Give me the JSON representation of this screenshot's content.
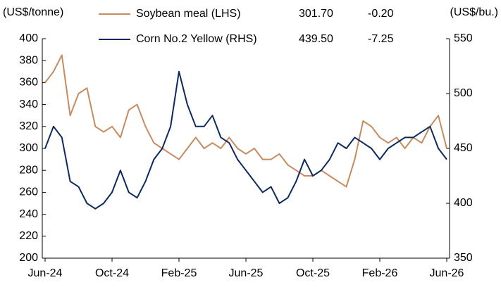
{
  "chart_data": {
    "type": "line",
    "ylabel": "(US$/tonne)",
    "y2label": "(US$/bu.)",
    "categories": [
      "Jun-24",
      null,
      null,
      null,
      null,
      null,
      null,
      null,
      "Oct-24",
      null,
      null,
      null,
      null,
      null,
      null,
      null,
      "Feb-25",
      null,
      null,
      null,
      null,
      null,
      null,
      null,
      "Jun-25",
      null,
      null,
      null,
      null,
      null,
      null,
      null,
      "Oct-25",
      null,
      null,
      null,
      null,
      null,
      null,
      null,
      "Feb-26",
      null,
      null,
      null,
      null,
      null,
      null,
      null,
      "Jun-26"
    ],
    "series": [
      {
        "name": "Soybean meal (LHS)",
        "color": "#c68b5f",
        "axis": "y",
        "last": "301.70",
        "change": "-0.20",
        "values": [
          360,
          370,
          385,
          330,
          350,
          355,
          320,
          315,
          320,
          310,
          335,
          340,
          320,
          305,
          300,
          295,
          290,
          300,
          310,
          300,
          305,
          300,
          310,
          300,
          295,
          300,
          290,
          290,
          295,
          285,
          280,
          275,
          275,
          280,
          275,
          270,
          265,
          290,
          325,
          320,
          310,
          305,
          310,
          300,
          310,
          305,
          320,
          330,
          300
        ]
      },
      {
        "name": "Corn No.2 Yellow (RHS)",
        "color": "#0d2a5e",
        "axis": "y2",
        "last": "439.50",
        "change": "-7.25",
        "values": [
          450,
          470,
          460,
          420,
          415,
          400,
          395,
          400,
          410,
          430,
          410,
          405,
          420,
          440,
          450,
          470,
          520,
          490,
          470,
          470,
          480,
          460,
          455,
          440,
          430,
          420,
          410,
          415,
          400,
          405,
          420,
          440,
          425,
          430,
          440,
          455,
          450,
          460,
          455,
          450,
          440,
          450,
          455,
          460,
          460,
          465,
          470,
          450,
          440
        ]
      }
    ],
    "ylim": [
      200,
      400
    ],
    "yticks": [
      200,
      220,
      240,
      260,
      280,
      300,
      320,
      340,
      360,
      380,
      400
    ],
    "y2lim": [
      350,
      550
    ],
    "y2ticks": [
      350,
      400,
      450,
      500,
      550
    ]
  }
}
